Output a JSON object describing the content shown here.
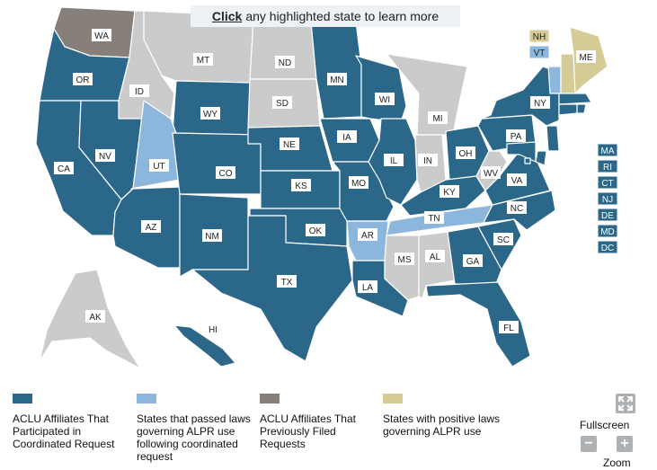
{
  "banner": {
    "action": "Click",
    "text": "any highlighted state to learn more"
  },
  "colors": {
    "coordinated": "#2b6788",
    "passed_law": "#8db6dc",
    "previous": "#867f7a",
    "positive_law": "#d4cc94",
    "none": "#cbcbcb",
    "label_bg": "#ffffff"
  },
  "legend": [
    {
      "color": "#2b6788",
      "label": "ACLU Affiliates That Participated in Coordinated Request"
    },
    {
      "color": "#8db6dc",
      "label": "States that passed laws governing ALPR use following coordinated request"
    },
    {
      "color": "#867f7a",
      "label": "ACLU Affiliates That Previously Filed Requests"
    },
    {
      "color": "#d4cc94",
      "label": "States with positive laws governing ALPR use"
    }
  ],
  "controls": {
    "fullscreen_label": "Fullscreen",
    "zoom_label": "Zoom",
    "zoom_out": "−",
    "zoom_in": "+"
  },
  "states": {
    "WA": "previous",
    "OR": "coordinated",
    "CA": "coordinated",
    "NV": "coordinated",
    "ID": "none",
    "MT": "none",
    "WY": "coordinated",
    "UT": "passed_law",
    "AZ": "coordinated",
    "CO": "coordinated",
    "NM": "coordinated",
    "ND": "none",
    "SD": "none",
    "NE": "coordinated",
    "KS": "coordinated",
    "OK": "coordinated",
    "TX": "coordinated",
    "MN": "coordinated",
    "IA": "coordinated",
    "MO": "coordinated",
    "AR": "passed_law",
    "LA": "coordinated",
    "WI": "coordinated",
    "IL": "coordinated",
    "MI": "none",
    "IN": "none",
    "OH": "coordinated",
    "KY": "coordinated",
    "TN": "passed_law",
    "MS": "none",
    "AL": "none",
    "GA": "coordinated",
    "FL": "coordinated",
    "SC": "coordinated",
    "NC": "coordinated",
    "VA": "coordinated",
    "WV": "none",
    "PA": "coordinated",
    "NY": "coordinated",
    "VT": "passed_law",
    "NH": "positive_law",
    "ME": "positive_law",
    "MA": "coordinated",
    "RI": "coordinated",
    "CT": "coordinated",
    "NJ": "coordinated",
    "DE": "coordinated",
    "MD": "coordinated",
    "DC": "coordinated",
    "AK": "none",
    "HI": "coordinated"
  }
}
